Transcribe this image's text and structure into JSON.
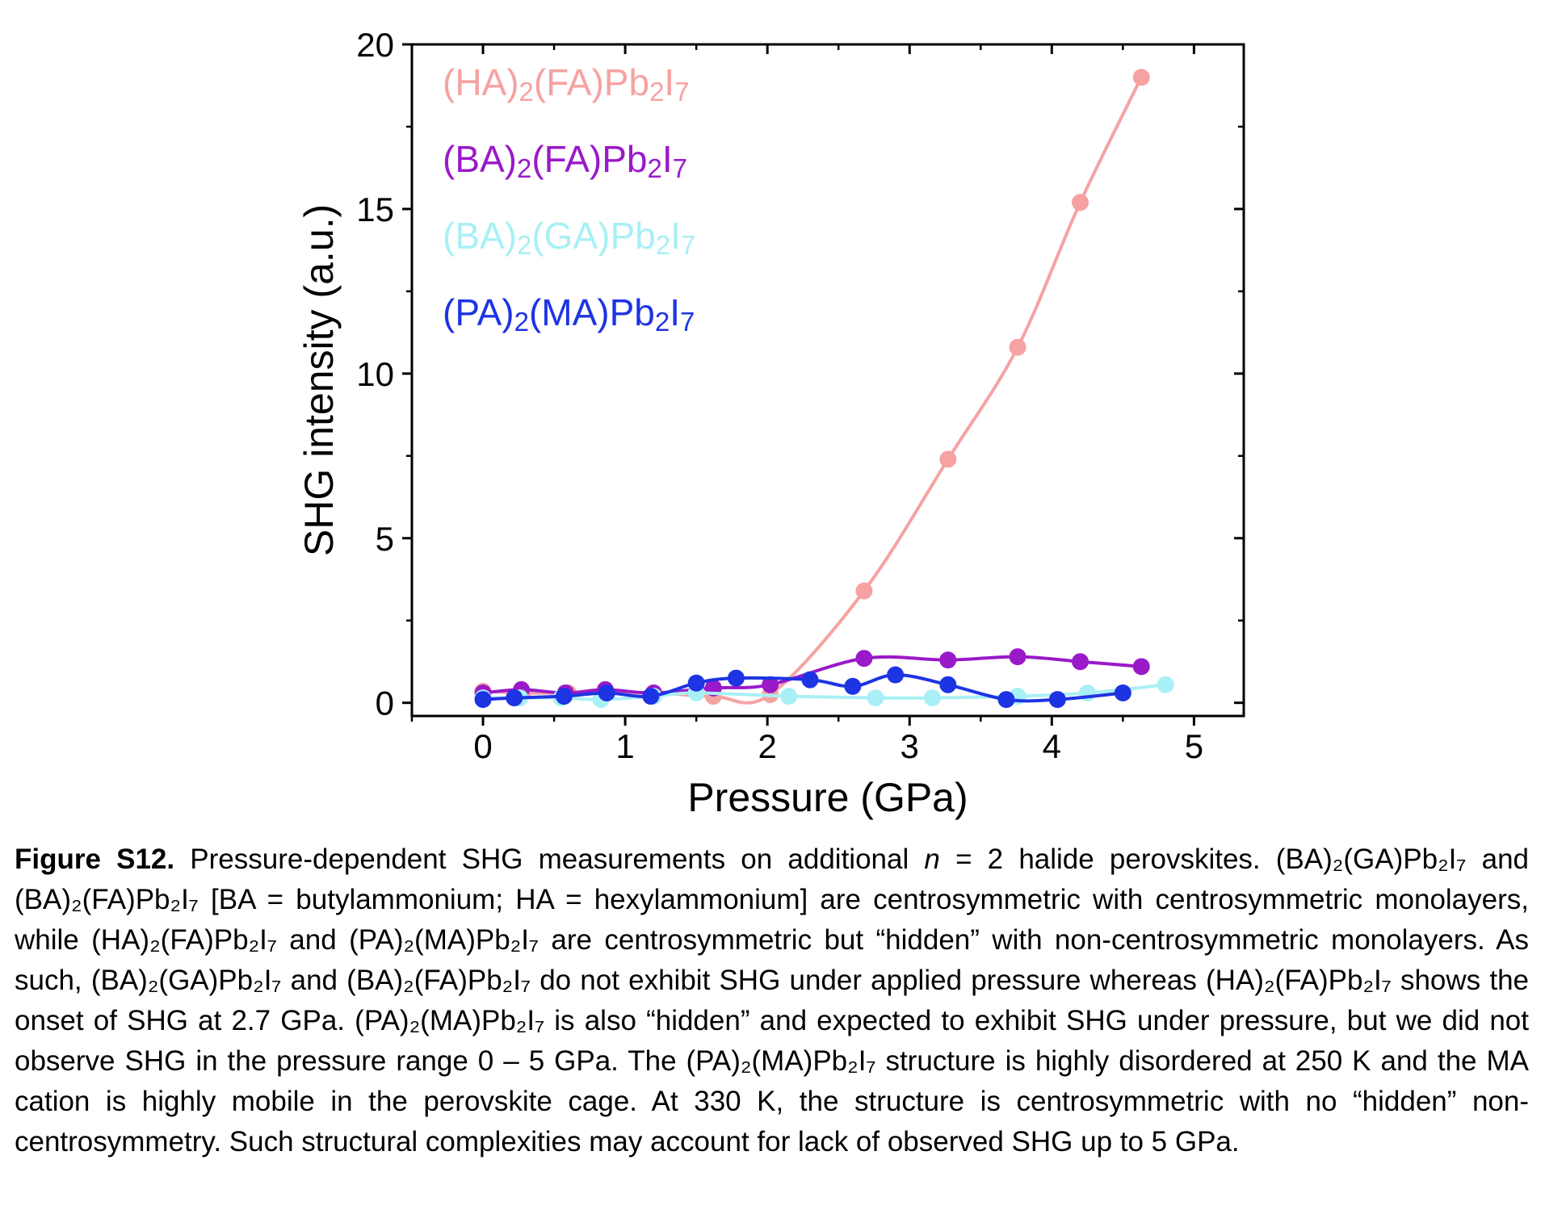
{
  "chart_data": {
    "type": "line",
    "xlabel": "Pressure (GPa)",
    "ylabel": "SHG intensity (a.u.)",
    "xlim": [
      -0.5,
      5.35
    ],
    "ylim": [
      -0.4,
      20
    ],
    "xticks": [
      "0",
      "1",
      "2",
      "3",
      "4",
      "5"
    ],
    "yticks": [
      "0",
      "5",
      "10",
      "15",
      "20"
    ],
    "grid": false,
    "legend_position": "top-left",
    "series": [
      {
        "key": "ha",
        "name": "(HA)2(FA)Pb2I7",
        "label_parts": [
          [
            "(HA)",
            ""
          ],
          [
            "2",
            "sub"
          ],
          [
            "(FA)Pb",
            ""
          ],
          [
            "2",
            "sub"
          ],
          [
            "I",
            ""
          ],
          [
            "7",
            "sub"
          ]
        ],
        "color": "#f6a2a2",
        "x": [
          0.0,
          0.28,
          0.6,
          0.87,
          1.2,
          1.62,
          2.02,
          2.68,
          3.27,
          3.76,
          4.2,
          4.63
        ],
        "y": [
          0.35,
          0.3,
          0.3,
          0.3,
          0.3,
          0.2,
          0.25,
          3.4,
          7.4,
          10.8,
          15.2,
          19.0
        ]
      },
      {
        "key": "ba_fa",
        "name": "(BA)2(FA)Pb2I7",
        "label_parts": [
          [
            "(BA)",
            ""
          ],
          [
            "2",
            "sub"
          ],
          [
            "(FA)Pb",
            ""
          ],
          [
            "2",
            "sub"
          ],
          [
            "I",
            ""
          ],
          [
            "7",
            "sub"
          ]
        ],
        "color": "#9a19c9",
        "x": [
          0.0,
          0.27,
          0.58,
          0.86,
          1.2,
          1.62,
          2.02,
          2.68,
          3.27,
          3.76,
          4.2,
          4.63
        ],
        "y": [
          0.3,
          0.4,
          0.3,
          0.4,
          0.3,
          0.45,
          0.55,
          1.35,
          1.3,
          1.4,
          1.25,
          1.1
        ]
      },
      {
        "key": "ba_ga",
        "name": "(BA)2(GA)Pb2I7",
        "label_parts": [
          [
            "(BA)",
            ""
          ],
          [
            "2",
            "sub"
          ],
          [
            "(GA)Pb",
            ""
          ],
          [
            "2",
            "sub"
          ],
          [
            "I",
            ""
          ],
          [
            "7",
            "sub"
          ]
        ],
        "color": "#a8f0f5",
        "x": [
          0.0,
          0.26,
          0.55,
          0.83,
          1.2,
          1.5,
          2.15,
          2.76,
          3.16,
          3.76,
          4.25,
          4.8
        ],
        "y": [
          0.15,
          0.15,
          0.15,
          0.1,
          0.2,
          0.3,
          0.2,
          0.15,
          0.15,
          0.2,
          0.3,
          0.55
        ]
      },
      {
        "key": "pa",
        "name": "(PA)2(MA)Pb2I7",
        "label_parts": [
          [
            "(PA)",
            ""
          ],
          [
            "2",
            "sub"
          ],
          [
            "(MA)Pb",
            ""
          ],
          [
            "2",
            "sub"
          ],
          [
            "I",
            ""
          ],
          [
            "7",
            "sub"
          ]
        ],
        "color": "#1d34e3",
        "x": [
          0.0,
          0.22,
          0.57,
          0.87,
          1.18,
          1.5,
          1.78,
          2.3,
          2.6,
          2.9,
          3.27,
          3.68,
          4.04,
          4.5
        ],
        "y": [
          0.1,
          0.15,
          0.2,
          0.3,
          0.2,
          0.6,
          0.75,
          0.7,
          0.5,
          0.85,
          0.55,
          0.1,
          0.1,
          0.3
        ]
      }
    ]
  },
  "caption": {
    "label": "Figure S12.",
    "part1": " Pressure-dependent SHG measurements on additional ",
    "n_symbol": "n",
    "part2": " = 2 halide perovskites. (BA)₂(GA)Pb₂I₇ and (BA)₂(FA)Pb₂I₇ [BA = butylammonium; HA = hexylammonium] are centrosymmetric with centrosymmetric monolayers, while (HA)₂(FA)Pb₂I₇ and (PA)₂(MA)Pb₂I₇ are centrosymmetric but “hidden” with non-centrosymmetric monolayers. As such, (BA)₂(GA)Pb₂I₇ and (BA)₂(FA)Pb₂I₇ do not exhibit SHG under applied pressure whereas (HA)₂(FA)Pb₂I₇ shows the onset of SHG at 2.7 GPa.  (PA)₂(MA)Pb₂I₇ is also “hidden” and expected to exhibit SHG under pressure, but we did not observe SHG in the pressure range 0 – 5 GPa. The (PA)₂(MA)Pb₂I₇ structure is highly disordered at 250 K and the MA cation is highly mobile in the perovskite cage. At 330 K, the structure is centrosymmetric with no “hidden” non-centrosymmetry. Such structural complexities may account for lack of observed SHG up to 5 GPa."
  }
}
